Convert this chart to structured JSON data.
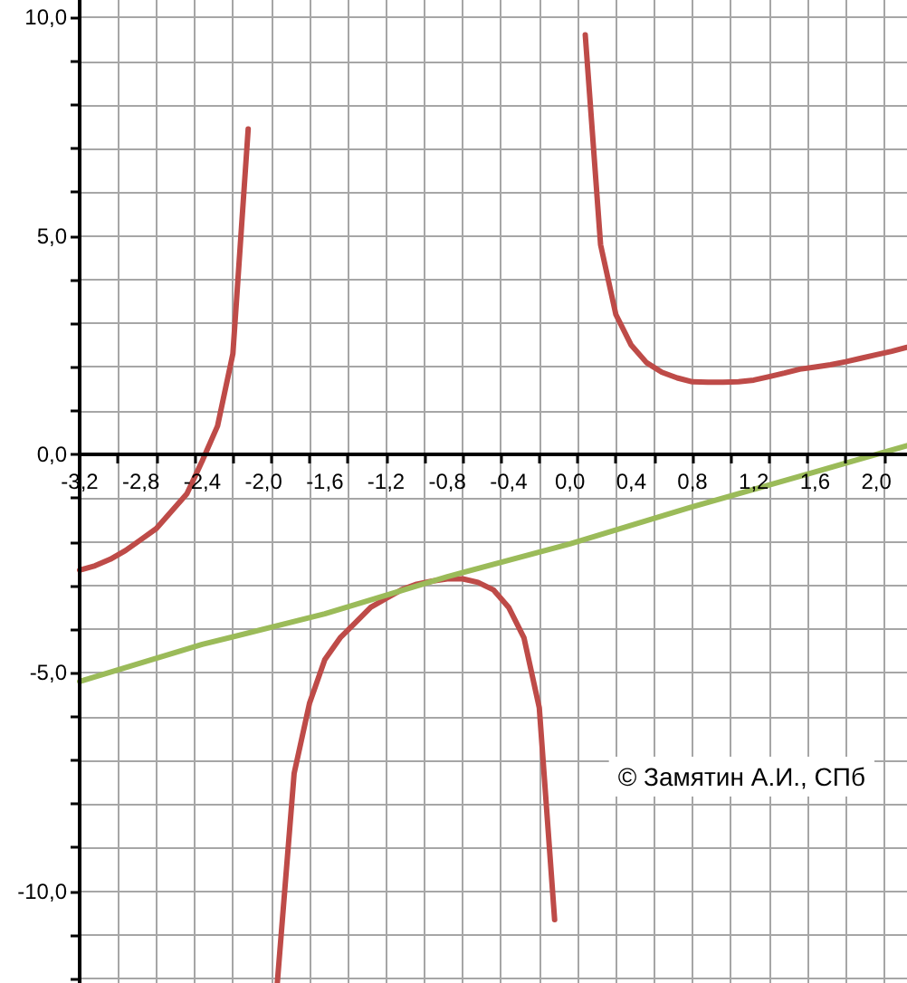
{
  "chart_data": {
    "type": "line",
    "xlim": [
      -3.2,
      2.2
    ],
    "xticks": [
      {
        "value": -3.2,
        "label": "-3,2"
      },
      {
        "value": -2.8,
        "label": "-2,8"
      },
      {
        "value": -2.4,
        "label": "-2,4"
      },
      {
        "value": -2,
        "label": "-2,0"
      },
      {
        "value": -1.6,
        "label": "-1,6"
      },
      {
        "value": -1.2,
        "label": "-1,2"
      },
      {
        "value": -0.8,
        "label": "-0,8"
      },
      {
        "value": -0.4,
        "label": "-0,4"
      },
      {
        "value": 0,
        "label": "0,0"
      },
      {
        "value": 0.4,
        "label": "0,4"
      },
      {
        "value": 0.8,
        "label": "0,8"
      },
      {
        "value": 1.2,
        "label": "1,2"
      },
      {
        "value": 1.6,
        "label": "1,6"
      },
      {
        "value": 2,
        "label": "2,0"
      },
      {
        "value": -3.2,
        "label": null
      },
      {
        "value": -2.95,
        "label": null
      },
      {
        "value": -2.7,
        "label": null
      },
      {
        "value": -2.45,
        "label": null
      },
      {
        "value": -2.2,
        "label": null
      },
      {
        "value": -1.95,
        "label": null
      },
      {
        "value": -1.7,
        "label": null
      },
      {
        "value": -1.45,
        "label": null
      },
      {
        "value": -1.2,
        "label": null
      },
      {
        "value": -0.95,
        "label": null
      },
      {
        "value": -0.7,
        "label": null
      },
      {
        "value": -0.45,
        "label": null
      },
      {
        "value": -0.2,
        "label": null
      },
      {
        "value": 0.05,
        "label": null
      },
      {
        "value": 0.3,
        "label": null
      },
      {
        "value": 0.55,
        "label": null
      },
      {
        "value": 0.8,
        "label": null
      },
      {
        "value": 1.05,
        "label": null
      },
      {
        "value": 1.3,
        "label": null
      },
      {
        "value": 1.55,
        "label": null
      },
      {
        "value": 1.8,
        "label": null
      },
      {
        "value": 2.05,
        "label": null
      }
    ],
    "ylim": [
      -12.1,
      10.4
    ],
    "yticks": [
      {
        "value": -10,
        "label": "-10,0"
      },
      {
        "value": -5,
        "label": "-5,0"
      },
      {
        "value": 0,
        "label": "0,0"
      },
      {
        "value": 5,
        "label": "5,0"
      },
      {
        "value": 10,
        "label": "10,0"
      },
      {
        "value": -12,
        "label": null
      },
      {
        "value": -11,
        "label": null
      },
      {
        "value": -10,
        "label": null
      },
      {
        "value": -9,
        "label": null
      },
      {
        "value": -8,
        "label": null
      },
      {
        "value": -7,
        "label": null
      },
      {
        "value": -6,
        "label": null
      },
      {
        "value": -5,
        "label": null
      },
      {
        "value": -4,
        "label": null
      },
      {
        "value": -3,
        "label": null
      },
      {
        "value": -2,
        "label": null
      },
      {
        "value": -1,
        "label": null
      },
      {
        "value": 0,
        "label": null
      },
      {
        "value": 1,
        "label": null
      },
      {
        "value": 2,
        "label": null
      },
      {
        "value": 3,
        "label": null
      },
      {
        "value": 4,
        "label": null
      },
      {
        "value": 5,
        "label": null
      },
      {
        "value": 6,
        "label": null
      },
      {
        "value": 7,
        "label": null
      },
      {
        "value": 8,
        "label": null
      },
      {
        "value": 9,
        "label": null
      },
      {
        "value": 10,
        "label": null
      }
    ],
    "grid": true,
    "marker": "none",
    "line_style": "solid",
    "series": [
      {
        "color": "#be4b48",
        "x": [
          -3.2,
          -3.1,
          -3.0,
          -2.9,
          -2.8,
          -2.7,
          -2.6,
          -2.5,
          -2.4,
          -2.3,
          -2.2,
          -2.1,
          -2.0,
          -1.91,
          -1.8,
          -1.7,
          -1.6,
          -1.5,
          -1.4,
          -1.3,
          -1.2,
          -1.1,
          -1.0,
          -0.9,
          -0.8,
          -0.7,
          -0.6,
          -0.5,
          -0.4,
          -0.3,
          -0.2,
          -0.1,
          0.0,
          0.1,
          0.2,
          0.3,
          0.4,
          0.5,
          0.6,
          0.7,
          0.8,
          0.9,
          1.0,
          1.1,
          1.2,
          1.3,
          1.4,
          1.5,
          1.6,
          1.7,
          1.8,
          1.9,
          2.0,
          2.1,
          2.2
        ],
        "values": [
          -2.65,
          -2.55,
          -2.4,
          -2.2,
          -1.95,
          -1.7,
          -1.3,
          -0.9,
          -0.15,
          0.65,
          2.3,
          7.45,
          null,
          -12.1,
          -7.3,
          -5.7,
          -4.7,
          -4.2,
          -3.85,
          -3.5,
          -3.3,
          -3.1,
          -2.97,
          -2.9,
          -2.85,
          -2.85,
          -2.93,
          -3.1,
          -3.5,
          -4.2,
          -5.8,
          -10.65,
          null,
          9.6,
          4.8,
          3.2,
          2.5,
          2.1,
          1.88,
          1.75,
          1.66,
          1.65,
          1.65,
          1.66,
          1.7,
          1.78,
          1.86,
          1.95,
          2.0,
          2.05,
          2.12,
          2.2,
          2.28,
          2.36,
          2.45
        ]
      },
      {
        "color": "#9bbb59",
        "x": [
          -3.2,
          -2.4,
          -1.6,
          -0.8,
          0,
          0.8,
          1.6,
          2.2
        ],
        "values": [
          -5.2,
          -4.35,
          -3.65,
          -2.8,
          -2.05,
          -1.2,
          -0.4,
          0.2
        ]
      }
    ],
    "annotations": [
      "© Замятин А.И., СПб"
    ]
  }
}
